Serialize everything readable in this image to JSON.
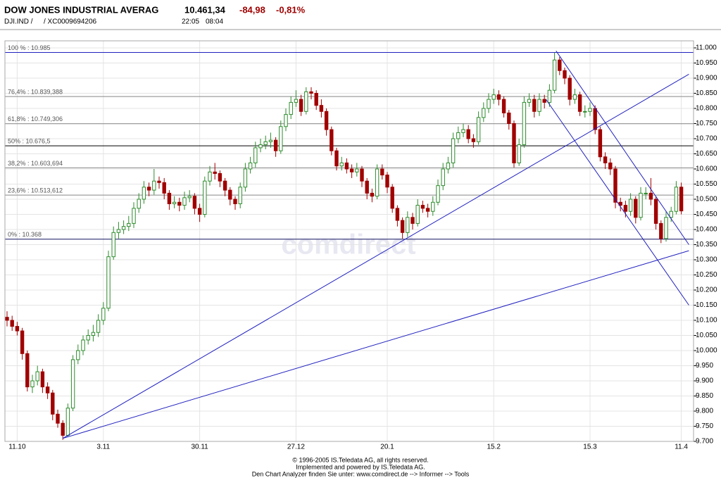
{
  "header": {
    "name": "DOW JONES INDUSTRIAL AVERAG",
    "last": "10.461,34",
    "change": "-84,98",
    "change_pct": "-0,81%",
    "symbol": "DJI.IND /",
    "isin": "/ XC0009694206",
    "time1": "22:05",
    "time2": "08:04"
  },
  "chart_data": {
    "type": "candlestick",
    "watermark": "comdirect",
    "categories": [
      null,
      null,
      "11.10",
      null,
      null,
      null,
      null,
      null,
      null,
      null,
      null,
      null,
      null,
      null,
      null,
      null,
      null,
      null,
      null,
      "3.11",
      null,
      null,
      null,
      null,
      null,
      null,
      null,
      null,
      null,
      null,
      null,
      null,
      null,
      null,
      null,
      null,
      null,
      null,
      "30.11",
      null,
      null,
      null,
      null,
      null,
      null,
      null,
      null,
      null,
      null,
      null,
      null,
      null,
      null,
      null,
      null,
      null,
      null,
      "27.12",
      null,
      null,
      null,
      null,
      null,
      null,
      null,
      null,
      null,
      null,
      null,
      null,
      null,
      null,
      null,
      null,
      null,
      "20.1",
      null,
      null,
      null,
      null,
      null,
      null,
      null,
      null,
      null,
      null,
      null,
      null,
      null,
      null,
      null,
      null,
      null,
      null,
      null,
      null,
      "15.2",
      null,
      null,
      null,
      null,
      null,
      null,
      null,
      null,
      null,
      null,
      null,
      null,
      null,
      null,
      null,
      null,
      null,
      null,
      "15.3",
      null,
      null,
      null,
      null,
      null,
      null,
      null,
      null,
      null,
      null,
      null,
      null,
      null,
      null,
      null,
      null,
      null,
      "11.4"
    ],
    "open": [
      10110,
      10100,
      10080,
      10065,
      9990,
      9880,
      9900,
      9930,
      9880,
      9860,
      9790,
      9760,
      9720,
      9810,
      9970,
      10000,
      10035,
      10050,
      10060,
      10100,
      10140,
      10310,
      10390,
      10400,
      10410,
      10420,
      10470,
      10500,
      10540,
      10530,
      10560,
      10555,
      10520,
      10485,
      10490,
      10480,
      10505,
      10510,
      10470,
      10450,
      10560,
      10590,
      10585,
      10560,
      10530,
      10500,
      10485,
      10540,
      10600,
      10620,
      10670,
      10680,
      10690,
      10695,
      10660,
      10740,
      10780,
      10820,
      10830,
      10790,
      10855,
      10850,
      10810,
      10790,
      10730,
      10660,
      10610,
      10620,
      10600,
      10590,
      10600,
      10560,
      10520,
      10510,
      10600,
      10580,
      10540,
      10470,
      10430,
      10390,
      10440,
      10420,
      10480,
      10470,
      10460,
      10490,
      10545,
      10600,
      10620,
      10700,
      10720,
      10730,
      10700,
      10690,
      10770,
      10800,
      10830,
      10845,
      10830,
      10785,
      10750,
      10620,
      10680,
      10820,
      10830,
      10790,
      10830,
      10820,
      10860,
      10960,
      10925,
      10900,
      10830,
      10845,
      10790,
      10790,
      10800,
      10730,
      10640,
      10620,
      10600,
      10490,
      10480,
      10460,
      10500,
      10440,
      10520,
      10520,
      10500,
      10420,
      10370,
      10440,
      10460,
      10540
    ],
    "high": [
      10130,
      10115,
      10095,
      10075,
      10000,
      9920,
      9950,
      9940,
      9895,
      9870,
      9805,
      9770,
      9825,
      9985,
      10020,
      10050,
      10070,
      10085,
      10120,
      10160,
      10330,
      10410,
      10425,
      10430,
      10445,
      10490,
      10520,
      10560,
      10555,
      10600,
      10575,
      10570,
      10530,
      10510,
      10505,
      10525,
      10530,
      10520,
      10485,
      10575,
      10610,
      10620,
      10595,
      10570,
      10540,
      10510,
      10555,
      10620,
      10640,
      10690,
      10700,
      10710,
      10720,
      10705,
      10760,
      10800,
      10840,
      10860,
      10845,
      10870,
      10870,
      10860,
      10830,
      10800,
      10740,
      10670,
      10640,
      10635,
      10615,
      10620,
      10610,
      10570,
      10535,
      10615,
      10615,
      10590,
      10550,
      10480,
      10440,
      10460,
      10455,
      10500,
      10495,
      10485,
      10510,
      10565,
      10620,
      10640,
      10720,
      10740,
      10750,
      10745,
      10715,
      10790,
      10820,
      10850,
      10865,
      10860,
      10840,
      10795,
      10760,
      10700,
      10840,
      10850,
      10845,
      10850,
      10845,
      10880,
      10985,
      10970,
      10935,
      10910,
      10865,
      10855,
      10810,
      10820,
      10810,
      10740,
      10655,
      10635,
      10610,
      10505,
      10495,
      10520,
      10510,
      10540,
      10540,
      10570,
      10510,
      10430,
      10460,
      10475,
      10560,
      10555
    ],
    "low": [
      10080,
      10065,
      10050,
      9970,
      9865,
      9860,
      9885,
      9860,
      9840,
      9770,
      9745,
      9705,
      9715,
      9800,
      9955,
      9985,
      10020,
      10030,
      10045,
      10085,
      10130,
      10300,
      10370,
      10385,
      10395,
      10405,
      10455,
      10485,
      10510,
      10515,
      10535,
      10500,
      10465,
      10470,
      10460,
      10465,
      10490,
      10450,
      10425,
      10440,
      10545,
      10565,
      10540,
      10510,
      10480,
      10465,
      10470,
      10525,
      10585,
      10605,
      10655,
      10665,
      10670,
      10640,
      10650,
      10725,
      10765,
      10805,
      10775,
      10780,
      10830,
      10795,
      10770,
      10710,
      10645,
      10595,
      10595,
      10585,
      10570,
      10575,
      10540,
      10500,
      10490,
      10500,
      10565,
      10520,
      10455,
      10410,
      10370,
      10375,
      10400,
      10410,
      10455,
      10440,
      10445,
      10480,
      10530,
      10585,
      10605,
      10685,
      10705,
      10685,
      10670,
      10680,
      10755,
      10785,
      10815,
      10810,
      10770,
      10730,
      10605,
      10610,
      10670,
      10805,
      10770,
      10775,
      10800,
      10805,
      10850,
      10910,
      10880,
      10810,
      10815,
      10775,
      10770,
      10775,
      10715,
      10625,
      10600,
      10580,
      10470,
      10460,
      10440,
      10445,
      10420,
      10430,
      10500,
      10480,
      10400,
      10355,
      10360,
      10425,
      10450,
      10450
    ],
    "close": [
      10100,
      10080,
      10065,
      9990,
      9880,
      9900,
      9930,
      9880,
      9860,
      9790,
      9760,
      9720,
      9810,
      9970,
      10000,
      10035,
      10050,
      10060,
      10100,
      10140,
      10310,
      10390,
      10400,
      10410,
      10420,
      10470,
      10500,
      10540,
      10530,
      10560,
      10555,
      10520,
      10485,
      10490,
      10480,
      10505,
      10510,
      10470,
      10450,
      10560,
      10590,
      10585,
      10560,
      10530,
      10500,
      10485,
      10540,
      10600,
      10620,
      10670,
      10680,
      10690,
      10695,
      10660,
      10740,
      10780,
      10820,
      10830,
      10790,
      10855,
      10850,
      10810,
      10790,
      10730,
      10660,
      10610,
      10620,
      10600,
      10590,
      10600,
      10560,
      10520,
      10510,
      10600,
      10580,
      10540,
      10470,
      10430,
      10390,
      10440,
      10420,
      10480,
      10470,
      10460,
      10490,
      10545,
      10600,
      10620,
      10700,
      10720,
      10730,
      10700,
      10690,
      10770,
      10800,
      10830,
      10845,
      10830,
      10785,
      10750,
      10620,
      10680,
      10820,
      10830,
      10790,
      10830,
      10820,
      10860,
      10960,
      10925,
      10900,
      10830,
      10845,
      10790,
      10790,
      10800,
      10730,
      10640,
      10620,
      10600,
      10490,
      10480,
      10460,
      10500,
      10440,
      10520,
      10520,
      10500,
      10420,
      10370,
      10440,
      10460,
      10540,
      10461.34
    ],
    "up_color": "#2e8b2e",
    "down_color": "#a00000",
    "ylim": [
      9700,
      11000
    ],
    "yticks": [
      {
        "value": 11000,
        "label": "11.000"
      },
      {
        "value": 10950,
        "label": "10.950"
      },
      {
        "value": 10900,
        "label": "10.900"
      },
      {
        "value": 10850,
        "label": "10.850"
      },
      {
        "value": 10800,
        "label": "10.800"
      },
      {
        "value": 10750,
        "label": "10.750"
      },
      {
        "value": 10700,
        "label": "10.700"
      },
      {
        "value": 10650,
        "label": "10.650"
      },
      {
        "value": 10600,
        "label": "10.600"
      },
      {
        "value": 10550,
        "label": "10.550"
      },
      {
        "value": 10500,
        "label": "10.500"
      },
      {
        "value": 10450,
        "label": "10.450"
      },
      {
        "value": 10400,
        "label": "10.400"
      },
      {
        "value": 10350,
        "label": "10.350"
      },
      {
        "value": 10300,
        "label": "10.300"
      },
      {
        "value": 10250,
        "label": "10.250"
      },
      {
        "value": 10200,
        "label": "10.200"
      },
      {
        "value": 10150,
        "label": "10.150"
      },
      {
        "value": 10100,
        "label": "10.100"
      },
      {
        "value": 10050,
        "label": "10.050"
      },
      {
        "value": 10000,
        "label": "10.000"
      },
      {
        "value": 9950,
        "label": "9.950"
      },
      {
        "value": 9900,
        "label": "9.900"
      },
      {
        "value": 9850,
        "label": "9.850"
      },
      {
        "value": 9800,
        "label": "9.800"
      },
      {
        "value": 9750,
        "label": "9.750"
      },
      {
        "value": 9700,
        "label": "9.700"
      }
    ],
    "grid": true,
    "levels": [
      {
        "label": "100 % : 10.985",
        "value": 10985,
        "color": "#2020c0"
      },
      {
        "label": "76,4% : 10.839,388",
        "value": 10839.388,
        "color": "#888888"
      },
      {
        "label": "61,8% : 10.749,306",
        "value": 10749.306,
        "color": "#888888"
      },
      {
        "label": "50% : 10.676,5",
        "value": 10676.5,
        "color": "#000000"
      },
      {
        "label": "38,2% : 10.603,694",
        "value": 10603.694,
        "color": "#888888"
      },
      {
        "label": "23,6% : 10.513,612",
        "value": 10513.612,
        "color": "#888888"
      },
      {
        "label": "0% : 10.368",
        "value": 10368,
        "color": "#101060"
      }
    ],
    "trendlines": [
      {
        "x": [
          11,
          134.5
        ],
        "y": [
          9710,
          10913
        ],
        "color": "#2020c0"
      },
      {
        "x": [
          11,
          134.5
        ],
        "y": [
          9710,
          10330
        ],
        "color": "#2020c0"
      },
      {
        "x": [
          108.3,
          134.5
        ],
        "y": [
          10990,
          10350
        ],
        "color": "#2020c0"
      },
      {
        "x": [
          106.3,
          134.5
        ],
        "y": [
          10830,
          10150
        ],
        "color": "#2020c0"
      }
    ]
  },
  "footer": {
    "line1": "© 1996-2005 IS.Teledata AG, all rights reserved.",
    "line2": "Implemented and powered by IS.Teledata AG.",
    "line3": "Den Chart Analyzer finden Sie unter: www.comdirect.de --> Informer --> Tools"
  }
}
